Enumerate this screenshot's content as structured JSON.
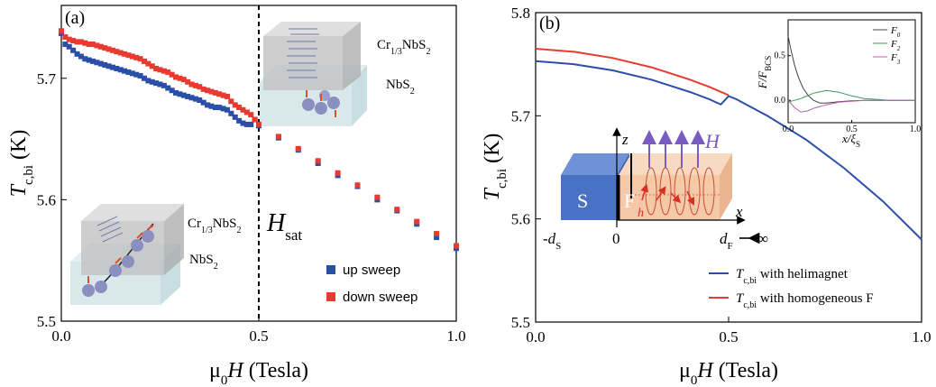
{
  "chart_data": [
    {
      "panel": "(a)",
      "type": "scatter",
      "xlabel": "μ0H (Tesla)",
      "ylabel": "Tc,bi (K)",
      "xlim": [
        0.0,
        1.0
      ],
      "ylim": [
        5.5,
        5.76
      ],
      "xticks": [
        "0.0",
        "0.5",
        "1.0"
      ],
      "yticks": [
        "5.5",
        "5.6",
        "5.7"
      ],
      "vline": {
        "x": 0.5,
        "label": "Hsat"
      },
      "annotations": [
        "Cr1/3NbS2",
        "NbS2",
        "Cr1/3NbS2",
        "NbS2"
      ],
      "legend_position": "bottom-right",
      "series": [
        {
          "name": "up sweep",
          "color": "#2b4ea8",
          "x": [
            0.0,
            0.01,
            0.02,
            0.03,
            0.04,
            0.05,
            0.06,
            0.07,
            0.08,
            0.09,
            0.1,
            0.11,
            0.12,
            0.13,
            0.14,
            0.15,
            0.16,
            0.17,
            0.18,
            0.19,
            0.2,
            0.21,
            0.22,
            0.23,
            0.24,
            0.25,
            0.26,
            0.27,
            0.28,
            0.29,
            0.3,
            0.31,
            0.32,
            0.33,
            0.34,
            0.35,
            0.36,
            0.37,
            0.38,
            0.39,
            0.4,
            0.41,
            0.42,
            0.43,
            0.44,
            0.45,
            0.46,
            0.47,
            0.48,
            0.49,
            0.5,
            0.55,
            0.6,
            0.65,
            0.7,
            0.75,
            0.8,
            0.85,
            0.9,
            0.95,
            1.0
          ],
          "y": [
            5.737,
            5.728,
            5.726,
            5.723,
            5.72,
            5.718,
            5.716,
            5.715,
            5.714,
            5.713,
            5.712,
            5.711,
            5.71,
            5.709,
            5.708,
            5.707,
            5.706,
            5.705,
            5.704,
            5.703,
            5.702,
            5.7,
            5.698,
            5.697,
            5.696,
            5.695,
            5.694,
            5.692,
            5.69,
            5.688,
            5.687,
            5.686,
            5.685,
            5.684,
            5.683,
            5.682,
            5.68,
            5.678,
            5.677,
            5.676,
            5.676,
            5.675,
            5.674,
            5.671,
            5.668,
            5.665,
            5.663,
            5.662,
            5.662,
            5.666,
            5.661,
            5.651,
            5.641,
            5.63,
            5.62,
            5.611,
            5.6,
            5.591,
            5.58,
            5.569,
            5.56
          ]
        },
        {
          "name": "down sweep",
          "color": "#e83a30",
          "x": [
            0.0,
            0.01,
            0.02,
            0.03,
            0.04,
            0.05,
            0.06,
            0.07,
            0.08,
            0.09,
            0.1,
            0.11,
            0.12,
            0.13,
            0.14,
            0.15,
            0.16,
            0.17,
            0.18,
            0.19,
            0.2,
            0.21,
            0.22,
            0.23,
            0.24,
            0.25,
            0.26,
            0.27,
            0.28,
            0.29,
            0.3,
            0.31,
            0.32,
            0.33,
            0.34,
            0.35,
            0.36,
            0.37,
            0.38,
            0.39,
            0.4,
            0.41,
            0.42,
            0.43,
            0.44,
            0.45,
            0.46,
            0.47,
            0.48,
            0.49,
            0.5,
            0.55,
            0.6,
            0.65,
            0.7,
            0.75,
            0.8,
            0.85,
            0.9,
            0.95,
            1.0
          ],
          "y": [
            5.739,
            5.734,
            5.732,
            5.731,
            5.73,
            5.73,
            5.729,
            5.728,
            5.728,
            5.727,
            5.726,
            5.725,
            5.724,
            5.723,
            5.722,
            5.721,
            5.72,
            5.719,
            5.718,
            5.717,
            5.716,
            5.714,
            5.712,
            5.71,
            5.708,
            5.707,
            5.706,
            5.705,
            5.703,
            5.701,
            5.7,
            5.699,
            5.697,
            5.695,
            5.694,
            5.693,
            5.691,
            5.69,
            5.689,
            5.688,
            5.687,
            5.686,
            5.685,
            5.681,
            5.678,
            5.676,
            5.674,
            5.672,
            5.67,
            5.666,
            5.662,
            5.652,
            5.642,
            5.632,
            5.622,
            5.612,
            5.602,
            5.592,
            5.582,
            5.572,
            5.562
          ]
        }
      ]
    },
    {
      "panel": "(b)",
      "type": "line",
      "xlabel": "μ0H (Tesla)",
      "ylabel": "Tc,bi (K)",
      "xlim": [
        0.0,
        1.0
      ],
      "ylim": [
        5.5,
        5.8
      ],
      "xticks": [
        "0.0",
        "0.5",
        "1.0"
      ],
      "yticks": [
        "5.5",
        "5.6",
        "5.7",
        "5.8"
      ],
      "legend_position": "bottom-right",
      "series": [
        {
          "name": "Tc,bi with helimagnet",
          "color": "#2b4ea8",
          "x": [
            0.0,
            0.1,
            0.2,
            0.3,
            0.4,
            0.45,
            0.48,
            0.5,
            0.52,
            0.6,
            0.7,
            0.8,
            0.9,
            1.0
          ],
          "y": [
            5.753,
            5.75,
            5.744,
            5.735,
            5.723,
            5.716,
            5.711,
            5.719,
            5.716,
            5.7,
            5.677,
            5.649,
            5.617,
            5.58
          ]
        },
        {
          "name": "Tc,bi with homogeneous F",
          "color": "#e83a30",
          "x": [
            0.0,
            0.1,
            0.2,
            0.3,
            0.4,
            0.45,
            0.5
          ],
          "y": [
            5.765,
            5.762,
            5.756,
            5.747,
            5.735,
            5.728,
            5.72
          ]
        }
      ],
      "inset": {
        "type": "line",
        "xlabel": "x/ξS",
        "ylabel": "F/FBCS",
        "xlim": [
          0.0,
          1.0
        ],
        "ylim": [
          -0.25,
          0.9
        ],
        "xticks": [
          "0.0",
          "0.5",
          "1.0"
        ],
        "yticks": [
          "0.0",
          "0.5"
        ],
        "series": [
          {
            "name": "F0",
            "color": "#444444",
            "x": [
              0.0,
              0.02,
              0.05,
              0.08,
              0.12,
              0.16,
              0.2,
              0.25,
              0.3,
              0.4,
              0.5,
              0.6,
              0.8,
              1.0
            ],
            "y": [
              0.72,
              0.58,
              0.4,
              0.26,
              0.13,
              0.05,
              0.0,
              -0.03,
              -0.03,
              -0.015,
              -0.005,
              0.0,
              0.0,
              0.0
            ]
          },
          {
            "name": "F2",
            "color": "#3a9a5a",
            "x": [
              0.0,
              0.05,
              0.1,
              0.15,
              0.2,
              0.3,
              0.4,
              0.5,
              0.6,
              0.8,
              1.0
            ],
            "y": [
              -0.02,
              0.0,
              0.02,
              0.05,
              0.08,
              0.11,
              0.09,
              0.05,
              0.02,
              0.0,
              0.0
            ]
          },
          {
            "name": "F3",
            "color": "#c05fa8",
            "x": [
              0.0,
              0.05,
              0.1,
              0.15,
              0.2,
              0.3,
              0.4,
              0.5,
              0.6,
              0.8,
              1.0
            ],
            "y": [
              0.0,
              -0.08,
              -0.13,
              -0.12,
              -0.09,
              -0.05,
              -0.02,
              -0.01,
              0.0,
              0.0,
              0.0
            ]
          }
        ]
      },
      "diagram_labels": {
        "s": "S",
        "f": "F",
        "z": "z",
        "x": "x",
        "h_field": "H",
        "h": "h",
        "zero": "0",
        "minus_ds": "-dS",
        "df": "dF",
        "infinity": "∞"
      }
    }
  ],
  "colors": {
    "up": "#2b4ea8",
    "down": "#e83a30",
    "diagram_s": "#4a72c4",
    "diagram_f": "#f5c8a8",
    "field_arrow": "#7a5cc0"
  }
}
